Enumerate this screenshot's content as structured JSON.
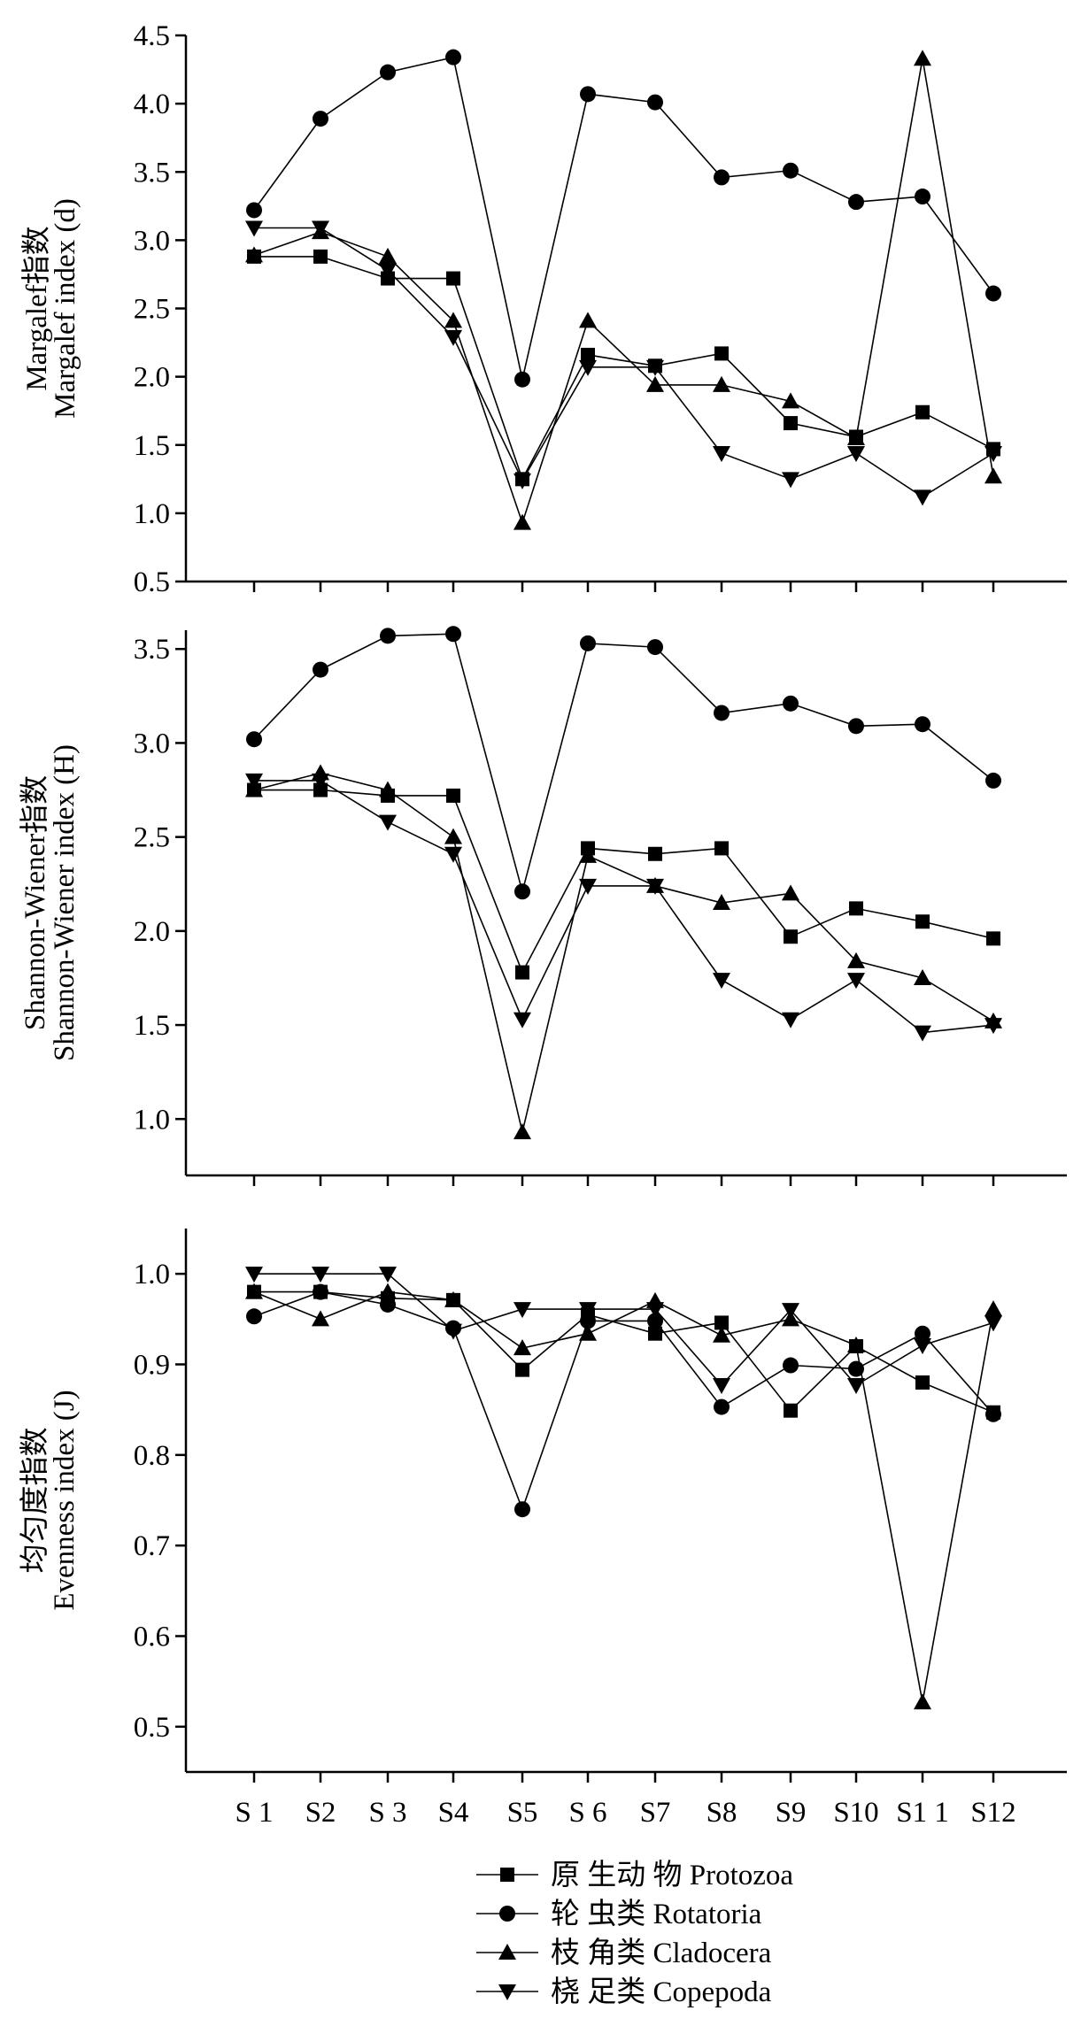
{
  "chart_data": [
    {
      "type": "line",
      "categories": [
        "S 1",
        "S2",
        "S 3",
        "S4",
        "S5",
        "S 6",
        "S7",
        "S8",
        "S9",
        "S10",
        "S1 1",
        "S12"
      ],
      "ylabel": [
        "Margalef指数",
        "Margalef index (d)"
      ],
      "ylim": [
        0.5,
        4.5
      ],
      "yticks": [
        "0.5",
        "1.0",
        "1.5",
        "2.0",
        "2.5",
        "3.0",
        "3.5",
        "4.0",
        "4.5"
      ],
      "series": [
        {
          "name": "Protozoa",
          "values": [
            2.88,
            2.88,
            2.72,
            2.72,
            1.25,
            2.16,
            2.08,
            2.17,
            1.66,
            1.56,
            1.74,
            1.47
          ]
        },
        {
          "name": "Rotatoria",
          "values": [
            3.22,
            3.89,
            4.23,
            4.34,
            1.98,
            4.07,
            4.01,
            3.46,
            3.51,
            3.28,
            3.32,
            2.61
          ]
        },
        {
          "name": "Cladocera",
          "values": [
            2.89,
            3.06,
            2.88,
            2.41,
            0.93,
            2.41,
            1.94,
            1.94,
            1.82,
            1.55,
            4.33,
            1.27
          ]
        },
        {
          "name": "Copepoda",
          "values": [
            3.09,
            3.09,
            2.78,
            2.29,
            1.24,
            2.07,
            2.07,
            1.44,
            1.25,
            1.44,
            1.12,
            1.44
          ]
        }
      ]
    },
    {
      "type": "line",
      "categories": [
        "S 1",
        "S2",
        "S 3",
        "S4",
        "S5",
        "S 6",
        "S7",
        "S8",
        "S9",
        "S10",
        "S1 1",
        "S12"
      ],
      "ylabel": [
        "Shannon-Wiener指数",
        "Shannon-Wiener index (H)"
      ],
      "ylim": [
        0.7,
        3.7
      ],
      "yticks": [
        "1.0",
        "1.5",
        "2.0",
        "2.5",
        "3.0",
        "3.5"
      ],
      "series": [
        {
          "name": "Protozoa",
          "values": [
            2.75,
            2.75,
            2.72,
            2.72,
            1.78,
            2.44,
            2.41,
            2.44,
            1.97,
            2.12,
            2.05,
            1.96
          ]
        },
        {
          "name": "Rotatoria",
          "values": [
            3.02,
            3.39,
            3.57,
            3.58,
            2.21,
            3.53,
            3.51,
            3.16,
            3.21,
            3.09,
            3.1,
            2.8
          ]
        },
        {
          "name": "Cladocera",
          "values": [
            2.75,
            2.84,
            2.75,
            2.5,
            0.93,
            2.4,
            2.24,
            2.15,
            2.2,
            1.84,
            1.75,
            1.52
          ]
        },
        {
          "name": "Copepoda",
          "values": [
            2.8,
            2.8,
            2.58,
            2.41,
            1.53,
            2.24,
            2.24,
            1.74,
            1.53,
            1.74,
            1.46,
            1.5
          ]
        }
      ]
    },
    {
      "type": "line",
      "categories": [
        "S 1",
        "S2",
        "S 3",
        "S4",
        "S5",
        "S 6",
        "S7",
        "S8",
        "S9",
        "S10",
        "S1 1",
        "S12"
      ],
      "ylabel": [
        "均匀度指数",
        "Evenness index (J)"
      ],
      "ylim": [
        0.45,
        1.05
      ],
      "yticks": [
        "0.5",
        "0.6",
        "0.7",
        "0.8",
        "0.9",
        "1.0"
      ],
      "series": [
        {
          "name": "Protozoa",
          "values": [
            0.98,
            0.98,
            0.973,
            0.971,
            0.894,
            0.955,
            0.934,
            0.946,
            0.849,
            0.92,
            0.88,
            0.847
          ]
        },
        {
          "name": "Rotatoria",
          "values": [
            0.953,
            0.98,
            0.966,
            0.94,
            0.74,
            0.948,
            0.948,
            0.853,
            0.899,
            0.895,
            0.934,
            0.845
          ]
        },
        {
          "name": "Cladocera",
          "values": [
            0.98,
            0.95,
            0.98,
            0.971,
            0.918,
            0.934,
            0.97,
            0.932,
            0.95,
            0.921,
            0.527,
            0.961
          ]
        },
        {
          "name": "Copepoda",
          "values": [
            1.0,
            1.0,
            1.0,
            0.937,
            0.961,
            0.961,
            0.961,
            0.877,
            0.96,
            0.877,
            0.921,
            0.946
          ]
        }
      ]
    }
  ],
  "legend": [
    {
      "marker": "square",
      "label": "原 生动 物 Protozoa"
    },
    {
      "marker": "circle",
      "label": "轮 虫类 Rotatoria"
    },
    {
      "marker": "triangle-up",
      "label": "枝 角类 Cladocera"
    },
    {
      "marker": "triangle-down",
      "label": "桡 足类 Copepoda"
    }
  ],
  "colors": {
    "line": "#000000",
    "background": "#ffffff"
  }
}
